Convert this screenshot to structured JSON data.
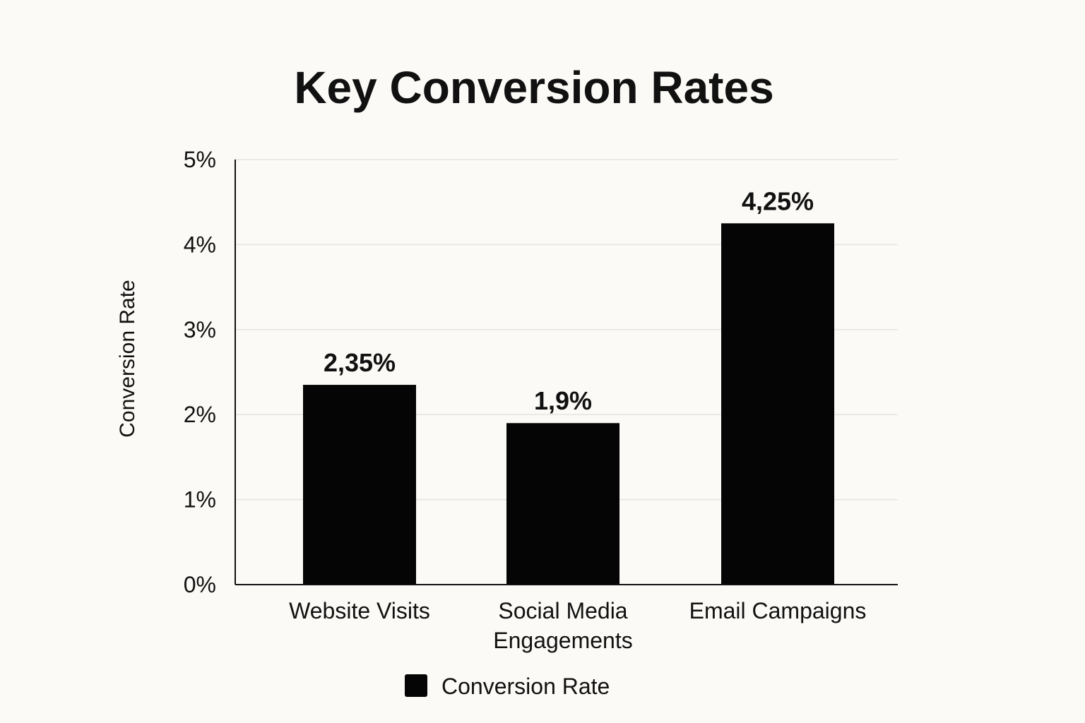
{
  "chart_data": {
    "type": "bar",
    "title": "Key Conversion Rates",
    "xlabel": "",
    "ylabel": "Conversion Rate",
    "categories": [
      [
        "Website Visits"
      ],
      [
        "Social Media",
        "Engagements"
      ],
      [
        "Email Campaigns"
      ]
    ],
    "series": [
      {
        "name": "Conversion Rate",
        "values": [
          2.35,
          1.9,
          4.25
        ],
        "value_labels": [
          "2,35%",
          "1,9%",
          "4,25%"
        ],
        "color": "#050505"
      }
    ],
    "ylim": [
      0,
      5
    ],
    "yticks": [
      0,
      1,
      2,
      3,
      4,
      5
    ],
    "ytick_labels": [
      "0%",
      "1%",
      "2%",
      "3%",
      "4%",
      "5%"
    ],
    "grid": true,
    "legend": "bottom-center"
  }
}
